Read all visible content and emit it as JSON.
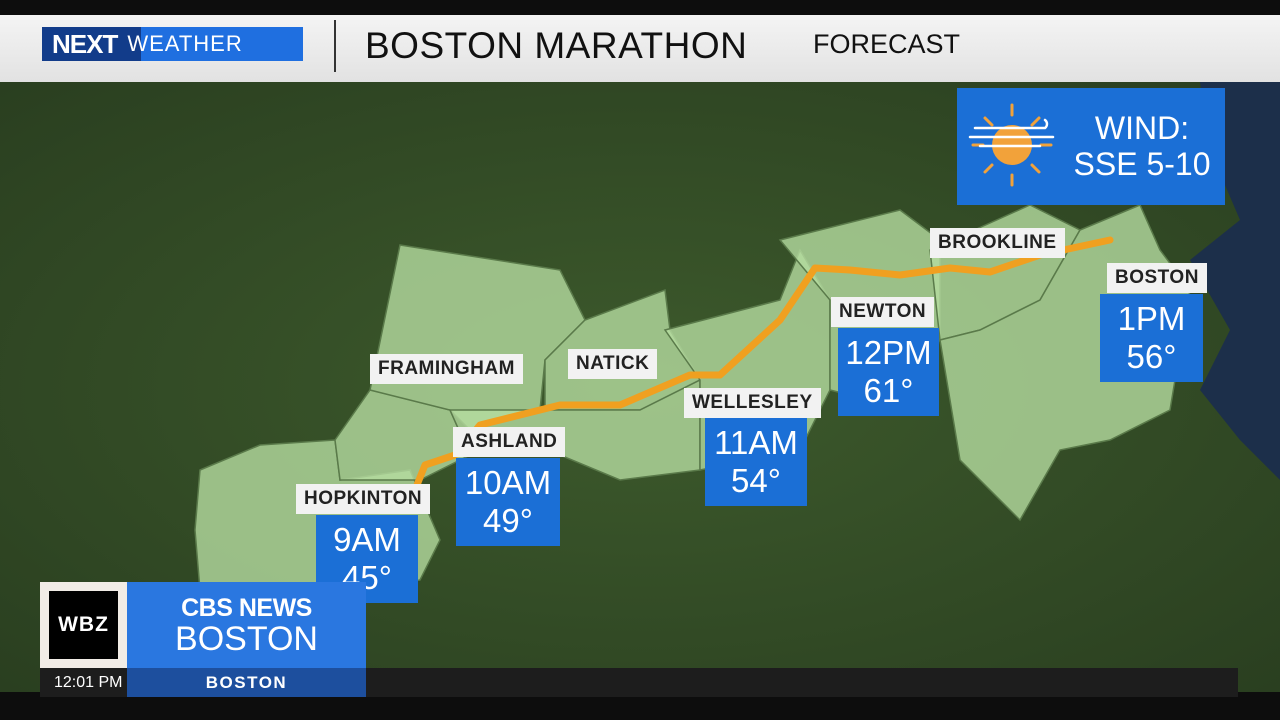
{
  "header": {
    "brand_logo": "NEXT WEATHER",
    "brand_next": "NEXT",
    "brand_weather": "WEATHER",
    "title": "BOSTON MARATHON",
    "subtitle": "FORECAST"
  },
  "wind": {
    "icon": "sun-wind-icon",
    "line1": "WIND:",
    "line2": "SSE 5-10"
  },
  "towns": [
    {
      "name": "HOPKINTON",
      "time": "9AM",
      "temp": "45°"
    },
    {
      "name": "ASHLAND",
      "time": "10AM",
      "temp": "49°"
    },
    {
      "name": "FRAMINGHAM"
    },
    {
      "name": "NATICK"
    },
    {
      "name": "WELLESLEY",
      "time": "11AM",
      "temp": "54°"
    },
    {
      "name": "NEWTON",
      "time": "12PM",
      "temp": "61°"
    },
    {
      "name": "BROOKLINE"
    },
    {
      "name": "BOSTON",
      "time": "1PM",
      "temp": "56°"
    }
  ],
  "colors": {
    "route": "#f0a020",
    "box": "#1b6fd6",
    "town_fill": "#b5dca0"
  },
  "footer": {
    "station": "WBZ",
    "network": "CBS NEWS",
    "network_city": "BOSTON",
    "time": "12:01 PM",
    "location": "BOSTON"
  }
}
